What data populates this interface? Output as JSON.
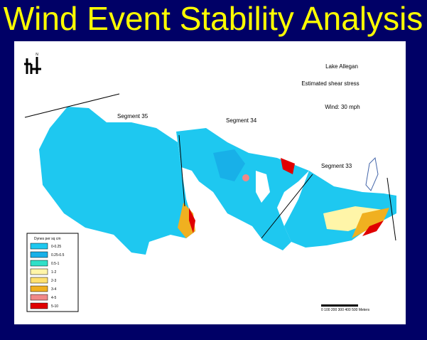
{
  "title": "Wind Event Stability Analysis",
  "map": {
    "lake_name": "Lake Allegan",
    "subtitle": "Estimated shear stress",
    "wind": "Wind: 30 mph",
    "north": "N",
    "segments": [
      "Segment 35",
      "Segment 34",
      "Segment 33"
    ],
    "scale_bar": "0 100 200 300 400 500 Meters"
  },
  "legend": {
    "title": "Dynes per sq cm",
    "items": [
      {
        "label": "0-0.25",
        "color": "#1ec8f0"
      },
      {
        "label": "0.25-0.5",
        "color": "#18b0e8"
      },
      {
        "label": "0.5-1",
        "color": "#30e0c8"
      },
      {
        "label": "1-2",
        "color": "#fff5a8"
      },
      {
        "label": "2-3",
        "color": "#ffe070"
      },
      {
        "label": "3-4",
        "color": "#f0b020"
      },
      {
        "label": "4-5",
        "color": "#f08888"
      },
      {
        "label": "5-10",
        "color": "#e00000"
      }
    ]
  }
}
